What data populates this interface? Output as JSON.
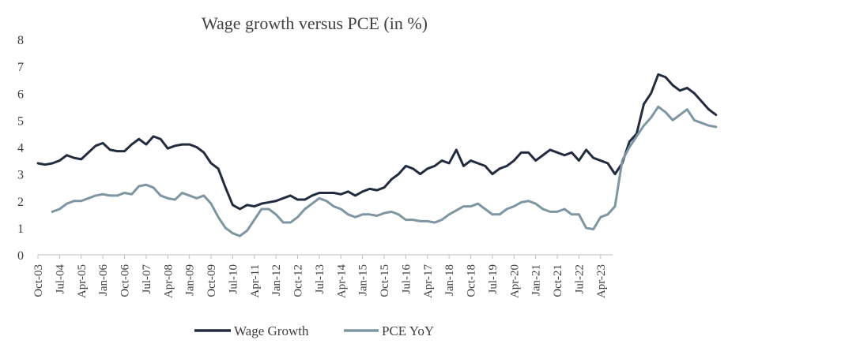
{
  "chart_data": {
    "type": "line",
    "title": "Wage growth versus PCE (in %)",
    "xlabel": "",
    "ylabel": "",
    "ylim": [
      0,
      8
    ],
    "yticks": [
      0,
      1,
      2,
      3,
      4,
      5,
      6,
      7,
      8
    ],
    "x_start": "Oct-03",
    "x_end": "Sep-23",
    "tick_labels": [
      "Oct-03",
      "Jul-04",
      "Apr-05",
      "Jan-06",
      "Oct-06",
      "Jul-07",
      "Apr-08",
      "Jan-09",
      "Oct-09",
      "Jul-10",
      "Apr-11",
      "Jan-12",
      "Oct-12",
      "Jul-13",
      "Apr-14",
      "Jan-15",
      "Oct-15",
      "Jul-16",
      "Apr-17",
      "Jan-18",
      "Oct-18",
      "Jul-19",
      "Apr-20",
      "Jan-21",
      "Oct-21",
      "Jul-22",
      "Apr-23"
    ],
    "grid": false,
    "legend_position": "bottom",
    "series": [
      {
        "name": "Wage Growth",
        "color": "#222c3e",
        "start_month_index": 0,
        "anchors": [
          [
            0,
            3.4
          ],
          [
            3,
            3.35
          ],
          [
            6,
            3.4
          ],
          [
            9,
            3.5
          ],
          [
            12,
            3.7
          ],
          [
            15,
            3.6
          ],
          [
            18,
            3.55
          ],
          [
            21,
            3.8
          ],
          [
            24,
            4.05
          ],
          [
            27,
            4.15
          ],
          [
            30,
            3.9
          ],
          [
            33,
            3.85
          ],
          [
            36,
            3.85
          ],
          [
            39,
            4.1
          ],
          [
            42,
            4.3
          ],
          [
            45,
            4.1
          ],
          [
            48,
            4.4
          ],
          [
            51,
            4.3
          ],
          [
            54,
            3.95
          ],
          [
            57,
            4.05
          ],
          [
            60,
            4.1
          ],
          [
            63,
            4.1
          ],
          [
            66,
            4.0
          ],
          [
            69,
            3.8
          ],
          [
            72,
            3.4
          ],
          [
            75,
            3.2
          ],
          [
            78,
            2.5
          ],
          [
            81,
            1.85
          ],
          [
            84,
            1.7
          ],
          [
            87,
            1.85
          ],
          [
            90,
            1.8
          ],
          [
            93,
            1.9
          ],
          [
            96,
            1.95
          ],
          [
            99,
            2.0
          ],
          [
            102,
            2.1
          ],
          [
            105,
            2.2
          ],
          [
            108,
            2.05
          ],
          [
            111,
            2.05
          ],
          [
            114,
            2.2
          ],
          [
            117,
            2.3
          ],
          [
            120,
            2.3
          ],
          [
            123,
            2.3
          ],
          [
            126,
            2.25
          ],
          [
            129,
            2.35
          ],
          [
            132,
            2.2
          ],
          [
            135,
            2.35
          ],
          [
            138,
            2.45
          ],
          [
            141,
            2.4
          ],
          [
            144,
            2.5
          ],
          [
            147,
            2.8
          ],
          [
            150,
            3.0
          ],
          [
            153,
            3.3
          ],
          [
            156,
            3.2
          ],
          [
            159,
            3.0
          ],
          [
            162,
            3.2
          ],
          [
            165,
            3.3
          ],
          [
            168,
            3.5
          ],
          [
            171,
            3.4
          ],
          [
            174,
            3.9
          ],
          [
            177,
            3.3
          ],
          [
            180,
            3.5
          ],
          [
            183,
            3.4
          ],
          [
            186,
            3.3
          ],
          [
            189,
            3.0
          ],
          [
            192,
            3.2
          ],
          [
            195,
            3.3
          ],
          [
            198,
            3.5
          ],
          [
            201,
            3.8
          ],
          [
            204,
            3.8
          ],
          [
            207,
            3.5
          ],
          [
            210,
            3.7
          ],
          [
            213,
            3.9
          ],
          [
            216,
            3.8
          ],
          [
            219,
            3.7
          ],
          [
            222,
            3.8
          ],
          [
            225,
            3.5
          ],
          [
            228,
            3.9
          ],
          [
            231,
            3.6
          ],
          [
            234,
            3.5
          ],
          [
            237,
            3.4
          ],
          [
            240,
            3.0
          ],
          [
            243,
            3.4
          ],
          [
            246,
            4.2
          ],
          [
            249,
            4.5
          ],
          [
            252,
            5.6
          ],
          [
            255,
            6.0
          ],
          [
            258,
            6.7
          ],
          [
            261,
            6.6
          ],
          [
            264,
            6.3
          ],
          [
            267,
            6.1
          ],
          [
            270,
            6.2
          ],
          [
            273,
            6.0
          ],
          [
            276,
            5.7
          ],
          [
            279,
            5.4
          ],
          [
            282,
            5.2
          ]
        ]
      },
      {
        "name": "PCE YoY",
        "color": "#7e96a1",
        "start_month_index": 6,
        "anchors": [
          [
            6,
            1.6
          ],
          [
            9,
            1.7
          ],
          [
            12,
            1.9
          ],
          [
            15,
            2.0
          ],
          [
            18,
            2.0
          ],
          [
            21,
            2.1
          ],
          [
            24,
            2.2
          ],
          [
            27,
            2.25
          ],
          [
            30,
            2.2
          ],
          [
            33,
            2.2
          ],
          [
            36,
            2.3
          ],
          [
            39,
            2.25
          ],
          [
            42,
            2.55
          ],
          [
            45,
            2.6
          ],
          [
            48,
            2.5
          ],
          [
            51,
            2.2
          ],
          [
            54,
            2.1
          ],
          [
            57,
            2.05
          ],
          [
            60,
            2.3
          ],
          [
            63,
            2.2
          ],
          [
            66,
            2.1
          ],
          [
            69,
            2.2
          ],
          [
            72,
            1.9
          ],
          [
            75,
            1.4
          ],
          [
            78,
            1.0
          ],
          [
            81,
            0.8
          ],
          [
            84,
            0.7
          ],
          [
            87,
            0.9
          ],
          [
            90,
            1.3
          ],
          [
            93,
            1.7
          ],
          [
            96,
            1.7
          ],
          [
            99,
            1.5
          ],
          [
            102,
            1.2
          ],
          [
            105,
            1.2
          ],
          [
            108,
            1.4
          ],
          [
            111,
            1.7
          ],
          [
            114,
            1.9
          ],
          [
            117,
            2.1
          ],
          [
            120,
            2.0
          ],
          [
            123,
            1.8
          ],
          [
            126,
            1.7
          ],
          [
            129,
            1.5
          ],
          [
            132,
            1.4
          ],
          [
            135,
            1.5
          ],
          [
            138,
            1.5
          ],
          [
            141,
            1.45
          ],
          [
            144,
            1.55
          ],
          [
            147,
            1.6
          ],
          [
            150,
            1.5
          ],
          [
            153,
            1.3
          ],
          [
            156,
            1.3
          ],
          [
            159,
            1.25
          ],
          [
            162,
            1.25
          ],
          [
            165,
            1.2
          ],
          [
            168,
            1.3
          ],
          [
            171,
            1.5
          ],
          [
            174,
            1.65
          ],
          [
            177,
            1.8
          ],
          [
            180,
            1.8
          ],
          [
            183,
            1.9
          ],
          [
            186,
            1.7
          ],
          [
            189,
            1.5
          ],
          [
            192,
            1.5
          ],
          [
            195,
            1.7
          ],
          [
            198,
            1.8
          ],
          [
            201,
            1.95
          ],
          [
            204,
            2.0
          ],
          [
            207,
            1.9
          ],
          [
            210,
            1.7
          ],
          [
            213,
            1.6
          ],
          [
            216,
            1.6
          ],
          [
            219,
            1.7
          ],
          [
            222,
            1.5
          ],
          [
            225,
            1.5
          ],
          [
            228,
            1.0
          ],
          [
            231,
            0.95
          ],
          [
            234,
            1.4
          ],
          [
            237,
            1.5
          ],
          [
            240,
            1.8
          ],
          [
            243,
            3.5
          ],
          [
            246,
            4.0
          ],
          [
            249,
            4.4
          ],
          [
            252,
            4.8
          ],
          [
            255,
            5.1
          ],
          [
            258,
            5.5
          ],
          [
            261,
            5.3
          ],
          [
            264,
            5.0
          ],
          [
            267,
            5.2
          ],
          [
            270,
            5.4
          ],
          [
            273,
            5.0
          ],
          [
            276,
            4.9
          ],
          [
            279,
            4.8
          ],
          [
            282,
            4.75
          ]
        ]
      }
    ]
  }
}
